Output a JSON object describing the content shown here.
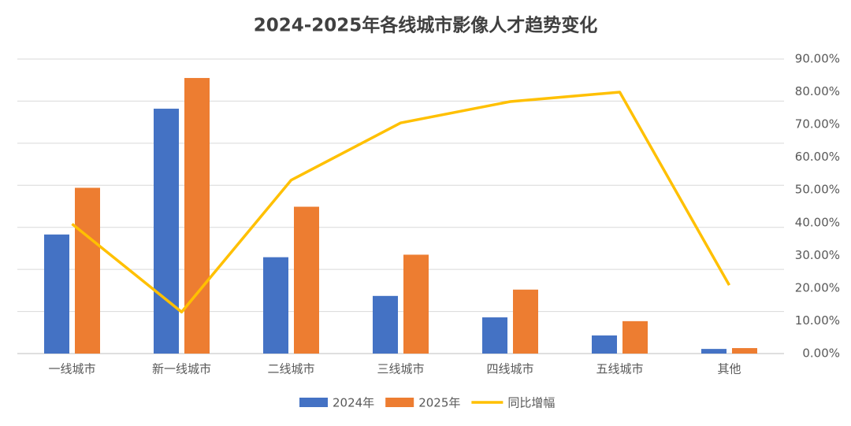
{
  "chart_data": {
    "type": "bar_line",
    "title": "2024-2025年各线城市影像人才趋势变化",
    "categories": [
      "一线城市",
      "新一线城市",
      "二线城市",
      "三线城市",
      "四线城市",
      "五线城市",
      "其他"
    ],
    "series": [
      {
        "name": "2024年",
        "type": "bar",
        "color": "#4472c4",
        "values": [
          2.83,
          5.82,
          2.29,
          1.37,
          0.86,
          0.43,
          0.11
        ]
      },
      {
        "name": "2025年",
        "type": "bar",
        "color": "#ed7d31",
        "values": [
          3.94,
          6.55,
          3.49,
          2.35,
          1.52,
          0.77,
          0.13
        ]
      },
      {
        "name": "同比增幅",
        "type": "line",
        "axis": "y2",
        "color": "#ffc000",
        "values": [
          39.6,
          12.7,
          53.0,
          70.5,
          77.0,
          79.9,
          20.9
        ]
      }
    ],
    "ylim": [
      0,
      7
    ],
    "yticks": [
      0,
      1,
      2,
      3,
      4,
      5,
      6,
      7
    ],
    "ytick_labels": false,
    "y2lim": [
      0,
      90
    ],
    "y2ticks": [
      {
        "value": 0,
        "label": "0.00%"
      },
      {
        "value": 10,
        "label": "10.00%"
      },
      {
        "value": 20,
        "label": "20.00%"
      },
      {
        "value": 30,
        "label": "30.00%"
      },
      {
        "value": 40,
        "label": "40.00%"
      },
      {
        "value": 50,
        "label": "50.00%"
      },
      {
        "value": 60,
        "label": "60.00%"
      },
      {
        "value": 70,
        "label": "70.00%"
      },
      {
        "value": 80,
        "label": "80.00%"
      },
      {
        "value": 90,
        "label": "90.00%"
      }
    ],
    "grid": true,
    "legend": "bottom"
  }
}
